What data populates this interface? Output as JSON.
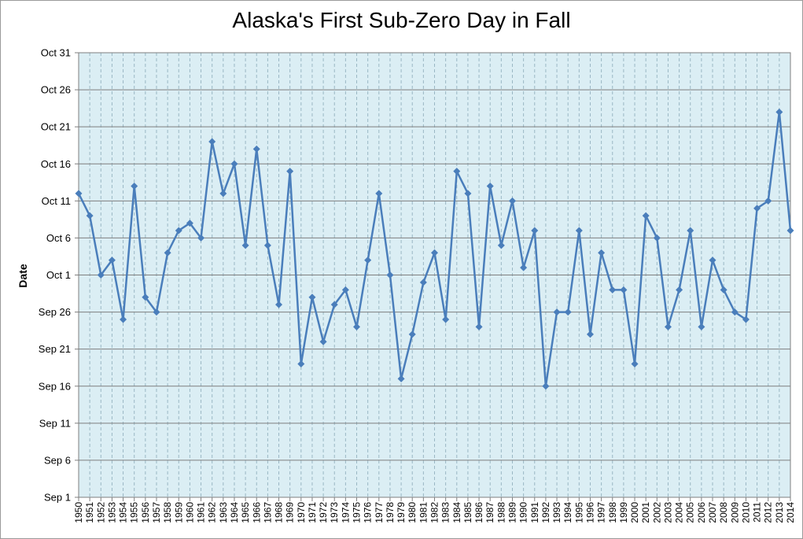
{
  "chart_data": {
    "type": "line",
    "title": "Alaska's First Sub-Zero Day in Fall",
    "ylabel": "Date",
    "xlabel": "",
    "x": [
      1950,
      1951,
      1952,
      1953,
      1954,
      1955,
      1956,
      1957,
      1958,
      1959,
      1960,
      1961,
      1962,
      1963,
      1964,
      1965,
      1966,
      1967,
      1968,
      1969,
      1970,
      1971,
      1972,
      1973,
      1974,
      1975,
      1976,
      1977,
      1978,
      1979,
      1980,
      1981,
      1982,
      1983,
      1984,
      1985,
      1986,
      1987,
      1988,
      1989,
      1990,
      1991,
      1992,
      1993,
      1994,
      1995,
      1996,
      1997,
      1998,
      1999,
      2000,
      2001,
      2002,
      2003,
      2004,
      2005,
      2006,
      2007,
      2008,
      2009,
      2010,
      2011,
      2012,
      2013,
      2014
    ],
    "series": [
      {
        "values": [
          "Oct 12",
          "Oct 9",
          "Oct 1",
          "Oct 3",
          "Sep 25",
          "Oct 13",
          "Sep 28",
          "Sep 26",
          "Oct 4",
          "Oct 7",
          "Oct 8",
          "Oct 6",
          "Oct 19",
          "Oct 12",
          "Oct 16",
          "Oct 5",
          "Oct 18",
          "Oct 5",
          "Sep 27",
          "Oct 15",
          "Sep 19",
          "Sep 28",
          "Sep 22",
          "Sep 27",
          "Sep 29",
          "Sep 24",
          "Oct 3",
          "Oct 12",
          "Oct 1",
          "Sep 17",
          "Sep 23",
          "Sep 30",
          "Oct 4",
          "Sep 25",
          "Oct 15",
          "Oct 12",
          "Sep 24",
          "Oct 13",
          "Oct 5",
          "Oct 11",
          "Oct 2",
          "Oct 7",
          "Sep 16",
          "Sep 26",
          "Sep 26",
          "Oct 7",
          "Sep 23",
          "Oct 4",
          "Sep 29",
          "Sep 29",
          "Sep 19",
          "Oct 9",
          "Oct 6",
          "Sep 24",
          "Sep 29",
          "Oct 7",
          "Sep 24",
          "Oct 3",
          "Sep 29",
          "Sep 26",
          "Sep 25",
          "Oct 10",
          "Oct 11",
          "Oct 23",
          "Oct 7"
        ]
      }
    ],
    "yticks": [
      "Sep 1",
      "Sep 6",
      "Sep 11",
      "Sep 16",
      "Sep 21",
      "Sep 26",
      "Oct 1",
      "Oct 6",
      "Oct 11",
      "Oct 16",
      "Oct 21",
      "Oct 26",
      "Oct 31"
    ],
    "ylim": [
      "Sep 1",
      "Oct 31"
    ],
    "grid": true,
    "legend": "none",
    "colors": {
      "line": "#4a7ebb",
      "plot_bg": "#dbeef4",
      "major_grid": "#7f7f7f",
      "minor_grid": "#9ab7c4"
    }
  }
}
